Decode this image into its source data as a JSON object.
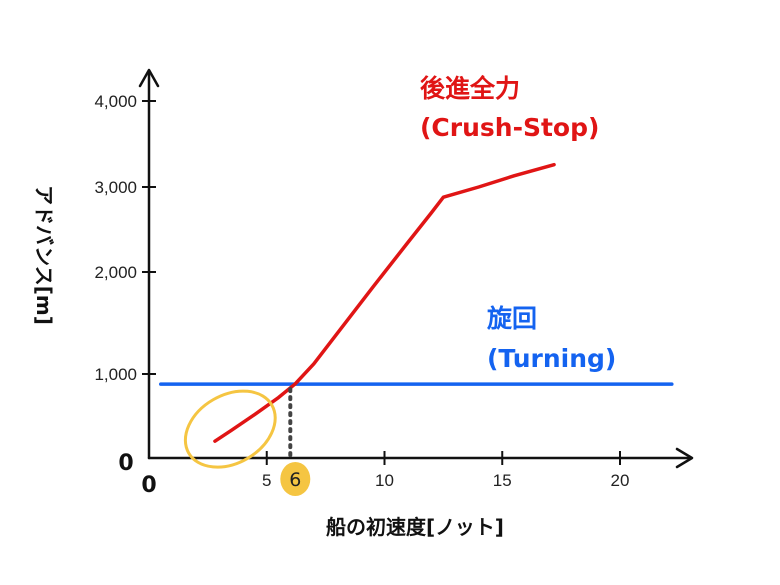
{
  "chart_data": {
    "type": "line",
    "xlabel": "船の初速度[ノット]",
    "ylabel": "アドバンス[m]",
    "xlim": [
      0,
      22
    ],
    "ylim": [
      0,
      4200
    ],
    "origin_x_label": "0",
    "origin_y_label": "0",
    "x_ticks": [
      {
        "value": 5,
        "label": "5"
      },
      {
        "value": 10,
        "label": "10"
      },
      {
        "value": 15,
        "label": "15"
      },
      {
        "value": 20,
        "label": "20"
      }
    ],
    "y_ticks": [
      {
        "value": 1000,
        "label": "1,000"
      },
      {
        "value": 2000,
        "label": "2,000"
      },
      {
        "value": 3000,
        "label": "3,000"
      },
      {
        "value": 4000,
        "label": "4,000"
      }
    ],
    "series": [
      {
        "name_line1": "後進全力",
        "name_line2": "(Crush-Stop)",
        "color": "#e01515",
        "x": [
          2.8,
          3.5,
          4.5,
          5.5,
          6.2,
          7.0,
          8.0,
          9.5,
          11.0,
          12.0,
          12.5,
          14.0,
          15.5,
          17.2
        ],
        "y": [
          200,
          330,
          520,
          720,
          880,
          1100,
          1400,
          1850,
          2350,
          2700,
          2880,
          3000,
          3130,
          3260
        ]
      },
      {
        "name_line1": "旋回",
        "name_line2": "(Turning)",
        "color": "#1463f0",
        "x": [
          0.5,
          22.2
        ],
        "y": [
          880,
          880
        ]
      }
    ],
    "highlight": {
      "label": "6",
      "x": 6,
      "y": 880,
      "circle_color": "#f5c542"
    }
  }
}
